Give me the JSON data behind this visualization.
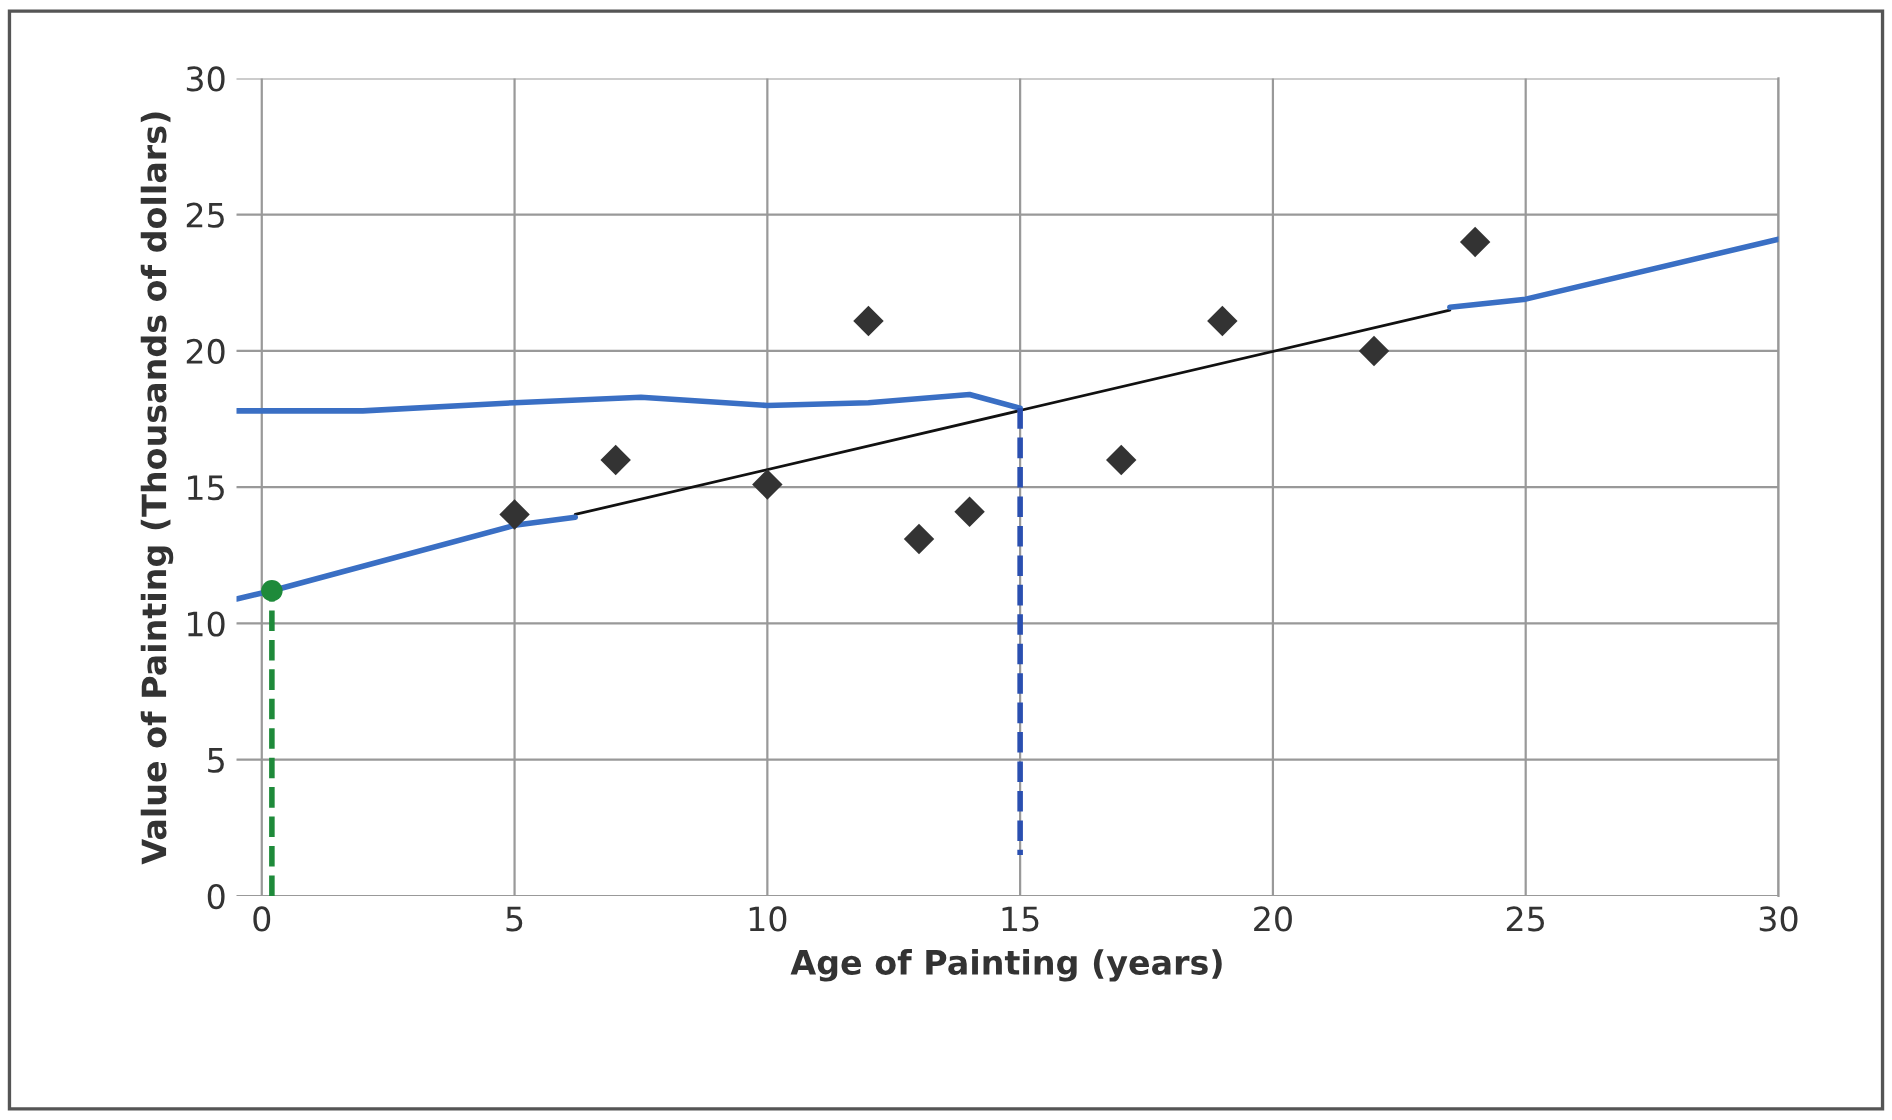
{
  "chart_data": {
    "type": "scatter",
    "xlabel": "Age of Painting (years)",
    "ylabel": "Value of Painting (Thousands of dollars)",
    "xlim": [
      -0.5,
      30
    ],
    "ylim": [
      0,
      30
    ],
    "xticks": [
      0,
      5,
      10,
      15,
      20,
      25,
      30
    ],
    "yticks": [
      0,
      5,
      10,
      15,
      20,
      25,
      30
    ],
    "grid": true,
    "legend": false,
    "series": [
      {
        "marker": "diamond",
        "color": "#333333",
        "x": [
          5,
          7,
          10,
          12,
          13,
          14,
          17,
          19,
          22,
          24
        ],
        "values": [
          14.0,
          16.0,
          15.1,
          21.1,
          13.1,
          14.1,
          16.0,
          21.1,
          20.0,
          24.0
        ]
      },
      {
        "type": "line",
        "line_style": "solid",
        "color": "#111111",
        "x": [
          6.2,
          23.5
        ],
        "values": [
          14.0,
          21.5
        ]
      },
      {
        "type": "line",
        "line_style": "solid",
        "color": "#3a6fc4",
        "x": [
          -0.5,
          0.2,
          5,
          6.2
        ],
        "values": [
          10.9,
          11.2,
          13.6,
          13.9
        ]
      },
      {
        "type": "line",
        "line_style": "solid",
        "color": "#3a6fc4",
        "x": [
          23.5,
          25,
          30
        ],
        "values": [
          21.6,
          21.9,
          24.1
        ]
      },
      {
        "type": "line",
        "line_style": "solid",
        "color": "#3a6fc4",
        "x": [
          -0.5,
          2,
          5,
          7.5,
          10,
          12,
          14,
          15
        ],
        "values": [
          17.8,
          17.8,
          18.1,
          18.3,
          18.0,
          18.1,
          18.4,
          17.9
        ]
      },
      {
        "type": "line",
        "line_style": "dashed",
        "color": "#2a4fb0",
        "x": [
          15,
          15
        ],
        "values": [
          17.9,
          1.5
        ]
      },
      {
        "type": "line",
        "line_style": "dashed",
        "color": "#1e8a3a",
        "x": [
          0.2,
          0.2
        ],
        "values": [
          0,
          11.2
        ]
      },
      {
        "marker": "circle",
        "color": "#1e8a3a",
        "x": [
          0.2
        ],
        "values": [
          11.2
        ]
      }
    ]
  }
}
